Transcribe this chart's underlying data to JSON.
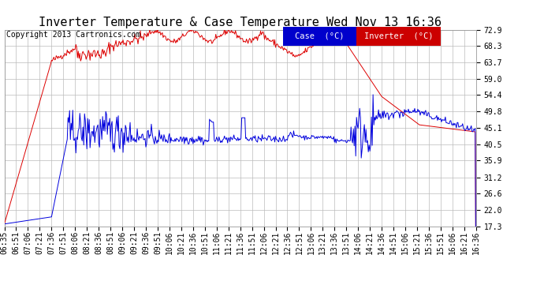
{
  "title": "Inverter Temperature & Case Temperature Wed Nov 13 16:36",
  "copyright": "Copyright 2013 Cartronics.com",
  "background_color": "#ffffff",
  "plot_bg_color": "#ffffff",
  "grid_color": "#bbbbbb",
  "yticks": [
    17.3,
    22.0,
    26.6,
    31.2,
    35.9,
    40.5,
    45.1,
    49.8,
    54.4,
    59.0,
    63.7,
    68.3,
    72.9
  ],
  "xtick_labels": [
    "06:35",
    "06:51",
    "07:06",
    "07:21",
    "07:36",
    "07:51",
    "08:06",
    "08:21",
    "08:36",
    "08:51",
    "09:06",
    "09:21",
    "09:36",
    "09:51",
    "10:06",
    "10:21",
    "10:36",
    "10:51",
    "11:06",
    "11:21",
    "11:36",
    "11:51",
    "12:06",
    "12:21",
    "12:36",
    "12:51",
    "13:06",
    "13:21",
    "13:36",
    "13:51",
    "14:06",
    "14:21",
    "14:36",
    "14:51",
    "15:06",
    "15:21",
    "15:36",
    "15:51",
    "16:06",
    "16:21",
    "16:36"
  ],
  "legend_case_color": "#0000cc",
  "legend_inverter_color": "#cc0000",
  "case_label": "Case  (°C)",
  "inverter_label": "Inverter  (°C)",
  "red_line_color": "#dd0000",
  "blue_line_color": "#0000dd",
  "title_fontsize": 11,
  "copyright_fontsize": 7,
  "tick_fontsize": 7,
  "legend_fontsize": 7.5,
  "ymin": 17.3,
  "ymax": 72.9
}
